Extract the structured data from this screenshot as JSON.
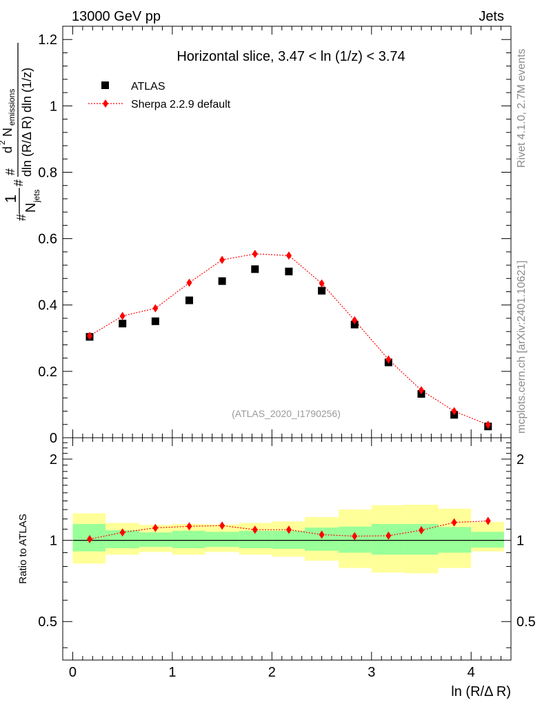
{
  "header": {
    "energy": "13000 GeV pp",
    "process": "Jets"
  },
  "side_labels": {
    "rivet": "Rivet 4.1.0,  2.7M events",
    "mcplots": "mcplots.cern.ch [arXiv:2401.10621]"
  },
  "colors": {
    "mc": "#ff0000",
    "data": "#000000",
    "band_inner": "#99ff99",
    "band_outer": "#ffff99"
  },
  "chart_data": [
    {
      "type": "scatter",
      "title": "Horizontal slice, 3.47 < ln (1/z) < 3.74",
      "watermark": "(ATLAS_2020_I1790256)",
      "xlabel": "ln (R/Δ R)",
      "ylabel_parts": {
        "hash_top": "#",
        "one": "1",
        "njets": "N",
        "njets_sub": "jets",
        "hash_left": "#",
        "d2": "d",
        "d2_sup": "2",
        "nem": "N",
        "nem_sub": "emissions",
        "hash_mid": "#",
        "denominator": "dln (R/Δ R) dln (1/z)"
      },
      "xlim": [
        -0.1,
        4.4
      ],
      "ylim": [
        0,
        1.24
      ],
      "xticks": [
        0,
        1,
        2,
        3,
        4
      ],
      "xtick_labels": [
        "0",
        "1",
        "2",
        "3",
        "4"
      ],
      "yticks": [
        0,
        0.2,
        0.4,
        0.6,
        0.8,
        1,
        1.2
      ],
      "ytick_labels": [
        "0",
        "0.2",
        "0.4",
        "0.6",
        "0.8",
        "1",
        "1.2"
      ],
      "legend": {
        "position": "top-left",
        "entries": [
          "ATLAS",
          "Sherpa 2.2.9 default"
        ]
      },
      "x": [
        0.17,
        0.5,
        0.83,
        1.17,
        1.5,
        1.83,
        2.17,
        2.5,
        2.83,
        3.17,
        3.5,
        3.83,
        4.17
      ],
      "series": [
        {
          "name": "ATLAS",
          "marker": "square",
          "values": [
            0.304,
            0.344,
            0.351,
            0.414,
            0.472,
            0.508,
            0.501,
            0.443,
            0.341,
            0.227,
            0.132,
            0.069,
            0.034
          ]
        },
        {
          "name": "Sherpa 2.2.9 default",
          "marker": "diamond",
          "line": "dotted",
          "values": [
            0.307,
            0.367,
            0.39,
            0.467,
            0.536,
            0.554,
            0.549,
            0.465,
            0.354,
            0.236,
            0.143,
            0.08,
            0.039
          ]
        }
      ]
    },
    {
      "type": "scatter",
      "ylabel": "Ratio to ATLAS",
      "ylim": [
        0.36,
        2.4
      ],
      "yscale": "log",
      "yticks": [
        0.5,
        1,
        2
      ],
      "ytick_labels": [
        "0.5",
        "1",
        "2"
      ],
      "xticks": [
        0,
        1,
        2,
        3,
        4
      ],
      "x": [
        0.17,
        0.5,
        0.83,
        1.17,
        1.5,
        1.83,
        2.17,
        2.5,
        2.83,
        3.17,
        3.5,
        3.83,
        4.17
      ],
      "bin_edges": [
        0,
        0.33,
        0.67,
        1.0,
        1.33,
        1.67,
        2.0,
        2.33,
        2.67,
        3.0,
        3.33,
        3.67,
        4.0,
        4.33
      ],
      "band_inner": {
        "low": [
          0.91,
          0.935,
          0.945,
          0.935,
          0.945,
          0.935,
          0.93,
          0.915,
          0.9,
          0.885,
          0.885,
          0.9,
          0.94
        ],
        "high": [
          1.15,
          1.09,
          1.07,
          1.085,
          1.075,
          1.085,
          1.085,
          1.115,
          1.125,
          1.15,
          1.15,
          1.12,
          1.075
        ]
      },
      "band_outer": {
        "low": [
          0.82,
          0.885,
          0.905,
          0.885,
          0.905,
          0.885,
          0.87,
          0.84,
          0.79,
          0.76,
          0.755,
          0.79,
          0.91
        ],
        "high": [
          1.26,
          1.16,
          1.14,
          1.15,
          1.145,
          1.16,
          1.175,
          1.22,
          1.3,
          1.35,
          1.355,
          1.31,
          1.17
        ]
      },
      "series": [
        {
          "name": "Sherpa 2.2.9 default",
          "marker": "diamond",
          "line": "dotted",
          "values": [
            1.01,
            1.07,
            1.112,
            1.127,
            1.134,
            1.095,
            1.095,
            1.05,
            1.036,
            1.04,
            1.09,
            1.165,
            1.18
          ]
        }
      ]
    }
  ]
}
